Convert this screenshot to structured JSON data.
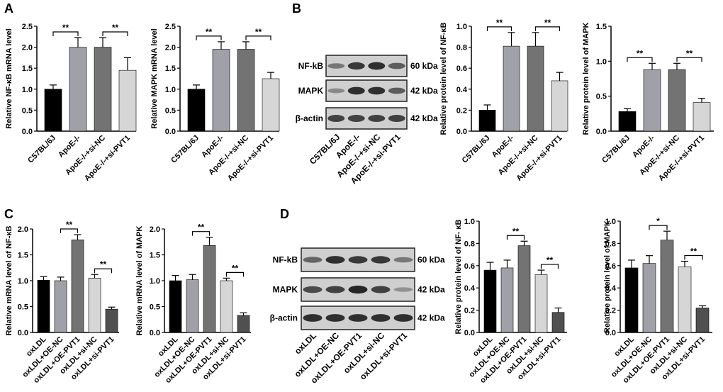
{
  "panels": {
    "A": "A",
    "B": "B",
    "C": "C",
    "D": "D"
  },
  "blots": [
    {
      "id": "B",
      "rows": [
        {
          "label": "NF-kB",
          "size": "60 kDa",
          "intensity": [
            0.45,
            0.8,
            0.85,
            0.6
          ]
        },
        {
          "label": "MAPK",
          "size": "42 kDa",
          "intensity": [
            0.35,
            0.85,
            0.85,
            0.6
          ]
        },
        {
          "label": "β-actin",
          "size": "42 kDa",
          "intensity": [
            0.75,
            0.75,
            0.75,
            0.75
          ]
        }
      ],
      "lanes": [
        "C57BL/6J",
        "ApoE-/-",
        "ApoE-/-+si-NC",
        "ApoE-/-+si-PVT1"
      ]
    },
    {
      "id": "D",
      "rows": [
        {
          "label": "NF-kB",
          "size": "60 kDa",
          "intensity": [
            0.55,
            0.85,
            0.8,
            0.8,
            0.45
          ]
        },
        {
          "label": "MAPK",
          "size": "42 kDa",
          "intensity": [
            0.7,
            0.75,
            0.9,
            0.75,
            0.3
          ]
        },
        {
          "label": "β-actin",
          "size": "42 kDa",
          "intensity": [
            0.85,
            0.85,
            0.85,
            0.85,
            0.85
          ]
        }
      ],
      "lanes": [
        "oxLDL",
        "oxLDL+OE-NC",
        "oxLDL+OE-PVT1",
        "oxLDL+si-NC",
        "oxLDL+si-PVT1"
      ]
    }
  ],
  "chart_data": [
    {
      "id": "A1",
      "type": "bar",
      "ylabel": "Relative NF-κB mRNA level",
      "categories": [
        "C57BL/6J",
        "ApoE-/-",
        "ApoE-/-+si-NC",
        "ApoE-/-+si-PVT1"
      ],
      "values": [
        1.0,
        2.0,
        2.0,
        1.45
      ],
      "errors": [
        0.1,
        0.23,
        0.23,
        0.3
      ],
      "colors": [
        "#000000",
        "#a0a0a8",
        "#737373",
        "#d6d6d6"
      ],
      "ylim": [
        0,
        2.5
      ],
      "yticks": [
        "0.0",
        "0.5",
        "1.0",
        "1.5",
        "2.0",
        "2.5"
      ],
      "significance": [
        {
          "from": 0,
          "to": 1,
          "label": "**"
        },
        {
          "from": 2,
          "to": 3,
          "label": "**"
        }
      ]
    },
    {
      "id": "A2",
      "type": "bar",
      "ylabel": "Relative MAPK mRNA level",
      "categories": [
        "C57BL/6J",
        "ApoE-/-",
        "ApoE-/-+si-NC",
        "ApoE-/-+si-PVT1"
      ],
      "values": [
        1.0,
        1.95,
        1.95,
        1.25
      ],
      "errors": [
        0.1,
        0.18,
        0.18,
        0.15
      ],
      "colors": [
        "#000000",
        "#a0a0a8",
        "#737373",
        "#d6d6d6"
      ],
      "ylim": [
        0,
        2.5
      ],
      "yticks": [
        "0.0",
        "0.5",
        "1.0",
        "1.5",
        "2.0",
        "2.5"
      ],
      "significance": [
        {
          "from": 0,
          "to": 1,
          "label": "**"
        },
        {
          "from": 2,
          "to": 3,
          "label": "**"
        }
      ]
    },
    {
      "id": "B1",
      "type": "bar",
      "ylabel": "Relative  protein level of NF-κB",
      "categories": [
        "C57BL/6J",
        "ApoE-/-",
        "ApoE-/-+si-NC",
        "ApoE-/-+si-PVT1"
      ],
      "values": [
        0.2,
        0.81,
        0.81,
        0.48
      ],
      "errors": [
        0.05,
        0.13,
        0.13,
        0.08
      ],
      "colors": [
        "#000000",
        "#a0a0a8",
        "#737373",
        "#d6d6d6"
      ],
      "ylim": [
        0,
        1.0
      ],
      "yticks": [
        "0.0",
        "0.2",
        "0.4",
        "0.6",
        "0.8",
        "1.0"
      ],
      "significance": [
        {
          "from": 0,
          "to": 1,
          "label": "**"
        },
        {
          "from": 2,
          "to": 3,
          "label": "**"
        }
      ]
    },
    {
      "id": "B2",
      "type": "bar",
      "ylabel": "Relative protein level of MAPK",
      "categories": [
        "C57BL/6J",
        "ApoE-/-",
        "ApoE-/-+si-NC",
        "ApoE-/-+si-PVT1"
      ],
      "values": [
        0.28,
        0.88,
        0.88,
        0.41
      ],
      "errors": [
        0.04,
        0.09,
        0.09,
        0.06
      ],
      "colors": [
        "#000000",
        "#a0a0a8",
        "#737373",
        "#d6d6d6"
      ],
      "ylim": [
        0,
        1.5
      ],
      "yticks": [
        "0.0",
        "0.5",
        "1.0",
        "1.5"
      ],
      "significance": [
        {
          "from": 0,
          "to": 1,
          "label": "**"
        },
        {
          "from": 2,
          "to": 3,
          "label": "**"
        }
      ]
    },
    {
      "id": "C1",
      "type": "bar",
      "ylabel": "Relative mRNA level of NF-κB",
      "categories": [
        "oxLDL",
        "oxLDL+OE-NC",
        "oxLDL+OE-PVT1",
        "oxLDL+si-NC",
        "oxLDL+si-PVT1"
      ],
      "values": [
        1.01,
        1.0,
        1.79,
        1.05,
        0.45
      ],
      "errors": [
        0.07,
        0.07,
        0.1,
        0.07,
        0.04
      ],
      "colors": [
        "#000000",
        "#a0a0a8",
        "#737373",
        "#d6d6d6",
        "#505050"
      ],
      "ylim": [
        0,
        2.0
      ],
      "yticks": [
        "0.0",
        "0.5",
        "1.0",
        "1.5",
        "2.0"
      ],
      "significance": [
        {
          "from": 1,
          "to": 2,
          "label": "**"
        },
        {
          "from": 3,
          "to": 4,
          "label": "**"
        }
      ]
    },
    {
      "id": "C2",
      "type": "bar",
      "ylabel": "Relative mRNA level of  MAPK",
      "categories": [
        "oxLDL",
        "oxLDL+OE-NC",
        "oxLDL+OE-PVT1",
        "oxLDL+si-NC",
        "oxLDL+si-PVT1"
      ],
      "values": [
        1.0,
        1.02,
        1.68,
        1.0,
        0.33
      ],
      "errors": [
        0.1,
        0.1,
        0.16,
        0.05,
        0.05
      ],
      "colors": [
        "#000000",
        "#a0a0a8",
        "#737373",
        "#d6d6d6",
        "#505050"
      ],
      "ylim": [
        0,
        2.0
      ],
      "yticks": [
        "0.0",
        "0.5",
        "1.0",
        "1.5",
        "2.0"
      ],
      "significance": [
        {
          "from": 1,
          "to": 2,
          "label": "**"
        },
        {
          "from": 3,
          "to": 4,
          "label": "**"
        }
      ]
    },
    {
      "id": "D1",
      "type": "bar",
      "ylabel": "Relative protein level of NF- κB",
      "categories": [
        "oxLDL",
        "oxLDL+OE-NC",
        "oxLDL+OE-PVT1",
        "oxLDL+si-NC",
        "oxLDL+si-PVT1"
      ],
      "values": [
        0.56,
        0.58,
        0.78,
        0.52,
        0.18
      ],
      "errors": [
        0.07,
        0.07,
        0.04,
        0.04,
        0.04
      ],
      "colors": [
        "#000000",
        "#a0a0a8",
        "#737373",
        "#d6d6d6",
        "#505050"
      ],
      "ylim": [
        0,
        1.0
      ],
      "yticks": [
        "0.0",
        "0.2",
        "0.4",
        "0.6",
        "0.8",
        "1.0"
      ],
      "significance": [
        {
          "from": 1,
          "to": 2,
          "label": "**"
        },
        {
          "from": 3,
          "to": 4,
          "label": "**"
        }
      ]
    },
    {
      "id": "D2",
      "type": "bar",
      "ylabel": "Relative  protein level of MAPK",
      "categories": [
        "oxLDL",
        "oxLDL+OE-NC",
        "oxLDL+OE-PVT1",
        "oxLDL+si-NC",
        "oxLDL+si-PVT1"
      ],
      "values": [
        0.58,
        0.62,
        0.83,
        0.59,
        0.22
      ],
      "errors": [
        0.07,
        0.07,
        0.08,
        0.05,
        0.02
      ],
      "colors": [
        "#000000",
        "#a0a0a8",
        "#737373",
        "#d6d6d6",
        "#505050"
      ],
      "ylim": [
        0,
        1.0
      ],
      "yticks": [
        "0.0",
        "0.2",
        "0.4",
        "0.6",
        "0.8",
        "1.0"
      ],
      "significance": [
        {
          "from": 1,
          "to": 2,
          "label": "*"
        },
        {
          "from": 3,
          "to": 4,
          "label": "**"
        }
      ]
    }
  ]
}
